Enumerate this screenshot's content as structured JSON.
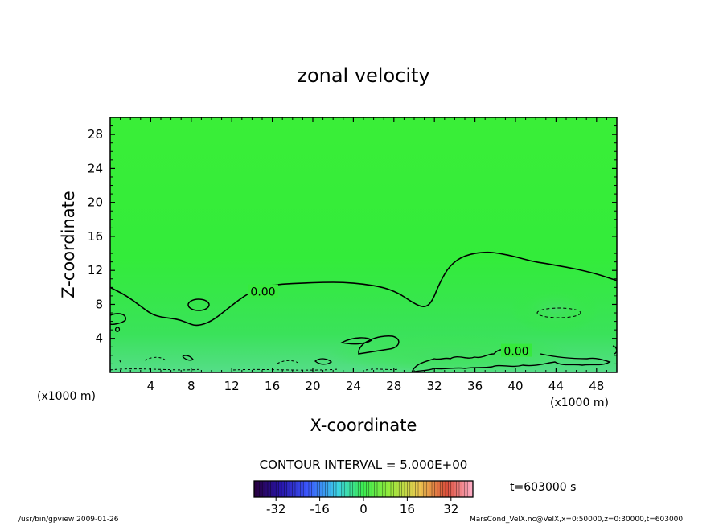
{
  "chart_data": {
    "type": "contour",
    "title": "zonal velocity",
    "xlabel": "X-coordinate",
    "ylabel": "Z-coordinate",
    "x_unit_label": "(x1000 m)",
    "y_unit_label": "(x1000 m)",
    "xlim": [
      0,
      50
    ],
    "ylim": [
      0,
      30
    ],
    "x_ticks": [
      4,
      8,
      12,
      16,
      20,
      24,
      28,
      32,
      36,
      40,
      44,
      48
    ],
    "y_ticks": [
      4,
      8,
      12,
      16,
      20,
      24,
      28
    ],
    "contour_interval_label": "CONTOUR INTERVAL = 5.000E+00",
    "contour_labels": [
      {
        "text": "0.00",
        "x": 15,
        "y": 9.5
      },
      {
        "text": "0.00",
        "x": 40,
        "y": 2.5
      }
    ],
    "zero_contour": {
      "x": [
        0,
        1.5,
        3,
        4,
        5,
        6.5,
        7.5,
        8.5,
        10,
        11.5,
        13,
        14,
        15,
        17,
        19,
        21,
        23,
        25,
        27,
        28.5,
        29.5,
        30.5,
        31.2,
        31.8,
        32.5,
        33.5,
        35,
        37,
        38.5,
        40,
        41.5,
        43,
        45,
        47,
        48.5,
        50
      ],
      "y": [
        10,
        9.1,
        7.8,
        6.9,
        6.5,
        6.3,
        5.9,
        5.4,
        6.0,
        7.4,
        8.8,
        9.5,
        10.1,
        10.4,
        10.5,
        10.6,
        10.6,
        10.4,
        10.0,
        9.3,
        8.5,
        7.8,
        7.7,
        8.4,
        10.5,
        12.6,
        13.8,
        14.2,
        14.0,
        13.6,
        13.1,
        12.8,
        12.4,
        11.9,
        11.4,
        10.8
      ]
    },
    "field_color": "#33ee33",
    "colorbar": {
      "tick_labels": [
        "-32",
        "-16",
        "0",
        "16",
        "32"
      ],
      "tick_values": [
        -32,
        -16,
        0,
        16,
        32
      ],
      "range": [
        -40,
        40
      ]
    },
    "time_label": "t=603000 s"
  },
  "footer": {
    "left": "/usr/bin/gpview  2009-01-26",
    "right": "MarsCond_VelX.nc@VelX,x=0:50000,z=0:30000,t=603000"
  }
}
